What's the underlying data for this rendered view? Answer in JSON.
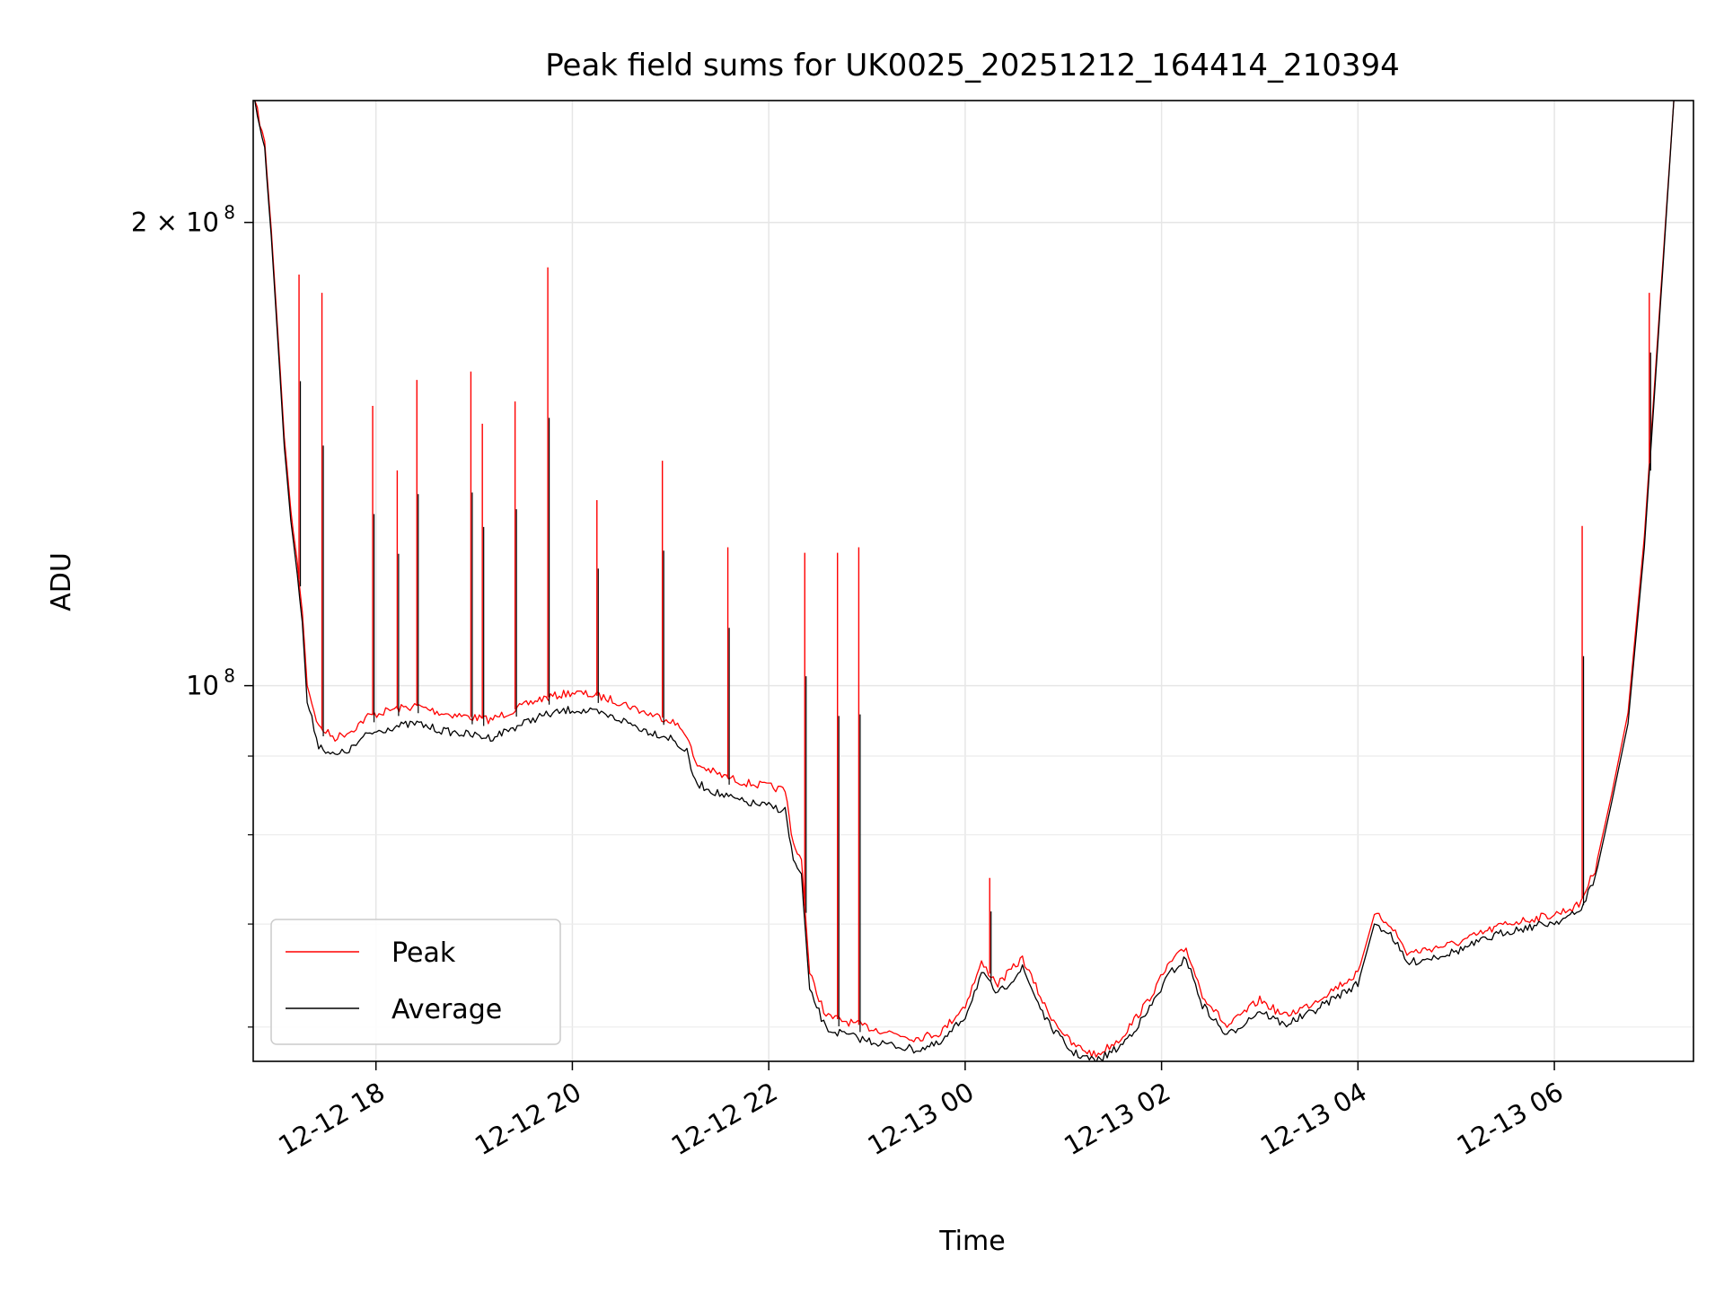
{
  "chart_data": {
    "type": "line",
    "title": "Peak field sums for UK0025_20251212_164414_210394",
    "xlabel": "Time",
    "ylabel": "ADU",
    "x_range": [
      "2025-12-12 16:45",
      "2025-12-13 07:25"
    ],
    "y_scale": "log",
    "ylim": [
      57000000,
      240000000
    ],
    "grid": true,
    "legend_position": "lower-left",
    "x_ticks": [
      {
        "label": "12-12 18",
        "value": "2025-12-12 18:00"
      },
      {
        "label": "12-12 20",
        "value": "2025-12-12 20:00"
      },
      {
        "label": "12-12 22",
        "value": "2025-12-12 22:00"
      },
      {
        "label": "12-13 00",
        "value": "2025-12-13 00:00"
      },
      {
        "label": "12-13 02",
        "value": "2025-12-13 02:00"
      },
      {
        "label": "12-13 04",
        "value": "2025-12-13 04:00"
      },
      {
        "label": "12-13 06",
        "value": "2025-12-13 06:00"
      }
    ],
    "y_major_ticks": [
      {
        "mantissa": "2 × 10",
        "exp": "8",
        "value": 200000000
      },
      {
        "mantissa": "10",
        "exp": "8",
        "value": 100000000
      }
    ],
    "y_minor_ticks": [
      90000000,
      80000000,
      70000000,
      60000000
    ],
    "series": [
      {
        "name": "Peak",
        "color": "#ff0000",
        "points": [
          [
            "2025-12-12 16:46",
            240000000
          ],
          [
            "2025-12-12 16:52",
            225000000
          ],
          [
            "2025-12-12 16:56",
            198000000
          ],
          [
            "2025-12-12 17:00",
            170000000
          ],
          [
            "2025-12-12 17:04",
            145000000
          ],
          [
            "2025-12-12 17:08",
            130000000
          ],
          [
            "2025-12-12 17:12",
            120000000
          ],
          [
            "2025-12-12 17:15",
            112000000
          ],
          [
            "2025-12-12 17:18",
            100000000
          ],
          [
            "2025-12-12 17:25",
            94000000
          ],
          [
            "2025-12-12 17:35",
            92500000
          ],
          [
            "2025-12-12 17:45",
            93500000
          ],
          [
            "2025-12-12 17:55",
            95500000
          ],
          [
            "2025-12-12 18:10",
            96500000
          ],
          [
            "2025-12-12 18:25",
            97000000
          ],
          [
            "2025-12-12 18:40",
            96000000
          ],
          [
            "2025-12-12 18:55",
            95500000
          ],
          [
            "2025-12-12 19:10",
            95000000
          ],
          [
            "2025-12-12 19:25",
            96500000
          ],
          [
            "2025-12-12 19:40",
            98000000
          ],
          [
            "2025-12-12 20:00",
            99000000
          ],
          [
            "2025-12-12 20:15",
            98500000
          ],
          [
            "2025-12-12 20:30",
            97500000
          ],
          [
            "2025-12-12 20:45",
            96000000
          ],
          [
            "2025-12-12 21:00",
            95000000
          ],
          [
            "2025-12-12 21:10",
            93000000
          ],
          [
            "2025-12-12 21:15",
            89000000
          ],
          [
            "2025-12-12 21:30",
            87500000
          ],
          [
            "2025-12-12 21:45",
            86500000
          ],
          [
            "2025-12-12 22:00",
            86000000
          ],
          [
            "2025-12-12 22:10",
            85500000
          ],
          [
            "2025-12-12 22:15",
            79000000
          ],
          [
            "2025-12-12 22:20",
            77000000
          ],
          [
            "2025-12-12 22:25",
            65000000
          ],
          [
            "2025-12-12 22:35",
            61000000
          ],
          [
            "2025-12-12 23:00",
            60000000
          ],
          [
            "2025-12-12 23:30",
            59000000
          ],
          [
            "2025-12-12 23:45",
            59500000
          ],
          [
            "2025-12-13 00:00",
            62000000
          ],
          [
            "2025-12-13 00:10",
            66000000
          ],
          [
            "2025-12-13 00:20",
            64000000
          ],
          [
            "2025-12-13 00:35",
            66500000
          ],
          [
            "2025-12-13 00:50",
            61500000
          ],
          [
            "2025-12-13 01:05",
            58500000
          ],
          [
            "2025-12-13 01:20",
            57500000
          ],
          [
            "2025-12-13 01:35",
            59000000
          ],
          [
            "2025-12-13 01:50",
            62000000
          ],
          [
            "2025-12-13 02:05",
            66000000
          ],
          [
            "2025-12-13 02:15",
            67500000
          ],
          [
            "2025-12-13 02:25",
            63000000
          ],
          [
            "2025-12-13 02:40",
            60000000
          ],
          [
            "2025-12-13 03:00",
            62500000
          ],
          [
            "2025-12-13 03:15",
            61000000
          ],
          [
            "2025-12-13 03:30",
            62000000
          ],
          [
            "2025-12-13 03:45",
            63500000
          ],
          [
            "2025-12-13 04:00",
            65000000
          ],
          [
            "2025-12-13 04:10",
            71000000
          ],
          [
            "2025-12-13 04:20",
            70000000
          ],
          [
            "2025-12-13 04:30",
            67000000
          ],
          [
            "2025-12-13 04:45",
            67500000
          ],
          [
            "2025-12-13 05:00",
            68000000
          ],
          [
            "2025-12-13 05:15",
            69000000
          ],
          [
            "2025-12-13 05:30",
            70000000
          ],
          [
            "2025-12-13 05:45",
            70500000
          ],
          [
            "2025-12-13 06:00",
            71000000
          ],
          [
            "2025-12-13 06:15",
            72000000
          ],
          [
            "2025-12-13 06:25",
            76000000
          ],
          [
            "2025-12-13 06:35",
            85000000
          ],
          [
            "2025-12-13 06:45",
            96000000
          ],
          [
            "2025-12-13 06:55",
            125000000
          ],
          [
            "2025-12-13 07:05",
            180000000
          ],
          [
            "2025-12-13 07:13",
            240000000
          ]
        ]
      },
      {
        "name": "Average",
        "color": "#000000",
        "points": [
          [
            "2025-12-12 16:46",
            240000000
          ],
          [
            "2025-12-12 16:52",
            223000000
          ],
          [
            "2025-12-12 16:56",
            196000000
          ],
          [
            "2025-12-12 17:00",
            168000000
          ],
          [
            "2025-12-12 17:04",
            143000000
          ],
          [
            "2025-12-12 17:08",
            128000000
          ],
          [
            "2025-12-12 17:12",
            118000000
          ],
          [
            "2025-12-12 17:15",
            110000000
          ],
          [
            "2025-12-12 17:18",
            97500000
          ],
          [
            "2025-12-12 17:25",
            91500000
          ],
          [
            "2025-12-12 17:35",
            90000000
          ],
          [
            "2025-12-12 17:45",
            91000000
          ],
          [
            "2025-12-12 17:55",
            93000000
          ],
          [
            "2025-12-12 18:10",
            94000000
          ],
          [
            "2025-12-12 18:25",
            94500000
          ],
          [
            "2025-12-12 18:40",
            93500000
          ],
          [
            "2025-12-12 18:55",
            93000000
          ],
          [
            "2025-12-12 19:10",
            92500000
          ],
          [
            "2025-12-12 19:25",
            94000000
          ],
          [
            "2025-12-12 19:40",
            95500000
          ],
          [
            "2025-12-12 20:00",
            96500000
          ],
          [
            "2025-12-12 20:15",
            96000000
          ],
          [
            "2025-12-12 20:30",
            95000000
          ],
          [
            "2025-12-12 20:45",
            93500000
          ],
          [
            "2025-12-12 21:00",
            92500000
          ],
          [
            "2025-12-12 21:10",
            90500000
          ],
          [
            "2025-12-12 21:15",
            86500000
          ],
          [
            "2025-12-12 21:30",
            85000000
          ],
          [
            "2025-12-12 21:45",
            84000000
          ],
          [
            "2025-12-12 22:00",
            83500000
          ],
          [
            "2025-12-12 22:10",
            83000000
          ],
          [
            "2025-12-12 22:15",
            77000000
          ],
          [
            "2025-12-12 22:20",
            75000000
          ],
          [
            "2025-12-12 22:25",
            63500000
          ],
          [
            "2025-12-12 22:35",
            59800000
          ],
          [
            "2025-12-12 23:00",
            58800000
          ],
          [
            "2025-12-12 23:30",
            58000000
          ],
          [
            "2025-12-12 23:45",
            58500000
          ],
          [
            "2025-12-13 00:00",
            61000000
          ],
          [
            "2025-12-13 00:10",
            65000000
          ],
          [
            "2025-12-13 00:20",
            63000000
          ],
          [
            "2025-12-13 00:35",
            65500000
          ],
          [
            "2025-12-13 00:50",
            60500000
          ],
          [
            "2025-12-13 01:05",
            57800000
          ],
          [
            "2025-12-13 01:20",
            57000000
          ],
          [
            "2025-12-13 01:35",
            58300000
          ],
          [
            "2025-12-13 01:50",
            61000000
          ],
          [
            "2025-12-13 02:05",
            65000000
          ],
          [
            "2025-12-13 02:15",
            66500000
          ],
          [
            "2025-12-13 02:25",
            62000000
          ],
          [
            "2025-12-13 02:40",
            59200000
          ],
          [
            "2025-12-13 03:00",
            61500000
          ],
          [
            "2025-12-13 03:15",
            60200000
          ],
          [
            "2025-12-13 03:30",
            61200000
          ],
          [
            "2025-12-13 03:45",
            62600000
          ],
          [
            "2025-12-13 04:00",
            64000000
          ],
          [
            "2025-12-13 04:10",
            70000000
          ],
          [
            "2025-12-13 04:20",
            69000000
          ],
          [
            "2025-12-13 04:30",
            66000000
          ],
          [
            "2025-12-13 04:45",
            66600000
          ],
          [
            "2025-12-13 05:00",
            67200000
          ],
          [
            "2025-12-13 05:15",
            68200000
          ],
          [
            "2025-12-13 05:30",
            69200000
          ],
          [
            "2025-12-13 05:45",
            69700000
          ],
          [
            "2025-12-13 06:00",
            70200000
          ],
          [
            "2025-12-13 06:15",
            71200000
          ],
          [
            "2025-12-13 06:25",
            75000000
          ],
          [
            "2025-12-13 06:35",
            84000000
          ],
          [
            "2025-12-13 06:45",
            94500000
          ],
          [
            "2025-12-13 06:55",
            123000000
          ],
          [
            "2025-12-13 07:05",
            178000000
          ],
          [
            "2025-12-13 07:13",
            240000000
          ]
        ]
      }
    ],
    "spikes": [
      [
        "2025-12-12 17:13",
        185000000
      ],
      [
        "2025-12-12 17:27",
        180000000
      ],
      [
        "2025-12-12 17:58",
        152000000
      ],
      [
        "2025-12-12 18:13",
        138000000
      ],
      [
        "2025-12-12 18:25",
        158000000
      ],
      [
        "2025-12-12 18:58",
        160000000
      ],
      [
        "2025-12-12 19:05",
        148000000
      ],
      [
        "2025-12-12 19:25",
        153000000
      ],
      [
        "2025-12-12 19:45",
        187000000
      ],
      [
        "2025-12-12 20:15",
        132000000
      ],
      [
        "2025-12-12 20:55",
        140000000
      ],
      [
        "2025-12-12 21:35",
        123000000
      ],
      [
        "2025-12-12 22:22",
        122000000
      ],
      [
        "2025-12-12 22:42",
        122000000
      ],
      [
        "2025-12-12 22:55",
        123000000
      ],
      [
        "2025-12-13 00:15",
        75000000
      ],
      [
        "2025-12-13 06:17",
        127000000
      ],
      [
        "2025-12-13 06:58",
        180000000
      ]
    ]
  }
}
